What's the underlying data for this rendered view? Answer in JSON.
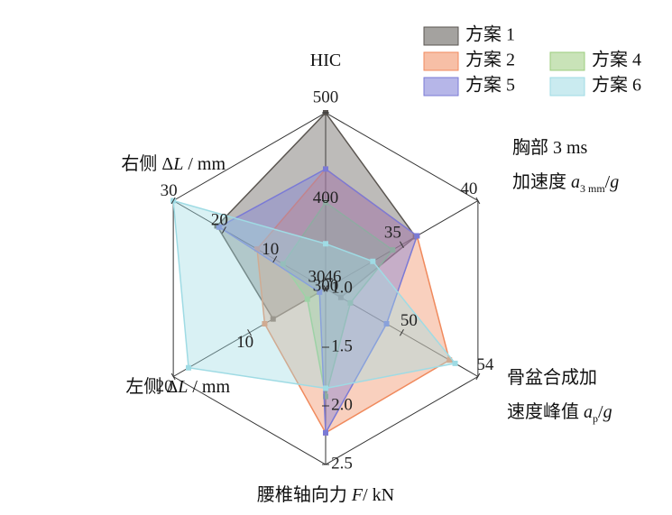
{
  "chart_data": {
    "type": "radar",
    "axes": [
      {
        "label": [
          [
            {
              "text": "HIC",
              "style": "normal"
            }
          ]
        ],
        "lim": [
          300,
          500
        ],
        "ticks": [
          300,
          400,
          500
        ]
      },
      {
        "label": [
          [
            {
              "text": "胸部 3 ms",
              "style": "normal"
            }
          ],
          [
            {
              "text": "加速度 ",
              "style": "normal"
            },
            {
              "text": "a",
              "style": "italic"
            },
            {
              "text": "3 mm",
              "style": "sub"
            },
            {
              "text": "/",
              "style": "normal"
            },
            {
              "text": "g",
              "style": "italic"
            }
          ]
        ],
        "lim": [
          30,
          40
        ],
        "ticks": [
          30,
          35,
          40
        ]
      },
      {
        "label": [
          [
            {
              "text": "骨盆合成加",
              "style": "normal"
            }
          ],
          [
            {
              "text": "速度峰值 ",
              "style": "normal"
            },
            {
              "text": "a",
              "style": "italic"
            },
            {
              "text": "p",
              "style": "sub"
            },
            {
              "text": "/",
              "style": "normal"
            },
            {
              "text": "g",
              "style": "italic"
            }
          ]
        ],
        "lim": [
          46,
          54
        ],
        "ticks": [
          46,
          50,
          54
        ]
      },
      {
        "label": [
          [
            {
              "text": "腰椎轴向力 ",
              "style": "normal"
            },
            {
              "text": "F",
              "style": "italic"
            },
            {
              "text": "/ kN",
              "style": "normal"
            }
          ]
        ],
        "lim": [
          1,
          2.5
        ],
        "ticks": [
          {
            "value": 1,
            "label": "1.0"
          },
          1.5,
          {
            "value": 2,
            "label": "2.0"
          },
          2.5
        ]
      },
      {
        "label": [
          [
            {
              "text": "左侧 Δ",
              "style": "normal"
            },
            {
              "text": "L",
              "style": "italic"
            },
            {
              "text": " / mm",
              "style": "normal"
            }
          ]
        ],
        "lim": [
          0,
          20
        ],
        "ticks": [
          10,
          20
        ]
      },
      {
        "label": [
          [
            {
              "text": "右侧 Δ",
              "style": "normal"
            },
            {
              "text": "L",
              "style": "italic"
            },
            {
              "text": " / mm",
              "style": "normal"
            }
          ]
        ],
        "lim": [
          0,
          30
        ],
        "ticks": [
          10,
          20,
          30
        ]
      }
    ],
    "series": [
      {
        "name": "方案 1",
        "color": "#5a5550",
        "values": [
          500,
          35.9,
          46.8,
          1.0,
          6.9,
          21.4
        ]
      },
      {
        "name": "方案 2",
        "color": "#f08a5d",
        "values": [
          436,
          36,
          52.5,
          2.23,
          8,
          13.5
        ]
      },
      {
        "name": "方案 4",
        "color": "#9ccc7e",
        "values": [
          398,
          34.4,
          47.3,
          1.92,
          2.4,
          8.4
        ]
      },
      {
        "name": "方案 5",
        "color": "#7a7ad6",
        "values": [
          436,
          36,
          49.2,
          2.23,
          0.8,
          21
        ]
      },
      {
        "name": "方案 6",
        "color": "#9fdbe4",
        "values": [
          351,
          33.1,
          52.8,
          1.85,
          18,
          30
        ]
      }
    ]
  }
}
